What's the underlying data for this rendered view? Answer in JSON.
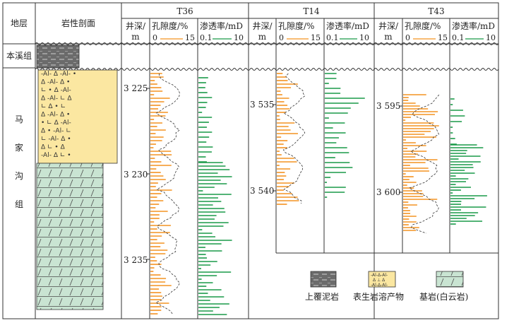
{
  "header": {
    "strata_label": "地层",
    "lithology_label": "岩性剖面"
  },
  "strata": {
    "upper": "本溪组",
    "lower_chars": [
      "马",
      "家",
      "沟",
      "组"
    ]
  },
  "wells": [
    {
      "name": "T36",
      "depth_label": [
        "井深/",
        "m"
      ],
      "porosity_label": "孔隙度/%",
      "porosity_scale": [
        "0",
        "15"
      ],
      "perm_label": "渗透率/mD",
      "perm_scale": [
        "0.1",
        "10"
      ],
      "depth_ticks": [
        "3 225",
        "3 230",
        "3 235"
      ]
    },
    {
      "name": "T14",
      "depth_label": [
        "井深/",
        "m"
      ],
      "porosity_label": "孔隙度/%",
      "porosity_scale": [
        "0",
        "15"
      ],
      "perm_label": "渗透率/mD",
      "perm_scale": [
        "0.1",
        "10"
      ],
      "depth_ticks": [
        "3 535",
        "3 540"
      ]
    },
    {
      "name": "T43",
      "depth_label": [
        "井深/",
        "m"
      ],
      "porosity_label": "孔隙度/%",
      "porosity_scale": [
        "0",
        "15"
      ],
      "perm_label": "渗透率/mD",
      "perm_scale": [
        "0.1",
        "10"
      ],
      "depth_ticks": [
        "3 595",
        "3 600"
      ]
    }
  ],
  "legend": {
    "overlying_mudstone": "上覆泥岩",
    "epigenetic_karst": "表生岩溶产物",
    "bedrock": "基岩(白云岩)"
  },
  "colors": {
    "porosity": "#f39322",
    "permeability": "#1a9a49",
    "mudstone": "#6b6b6b",
    "karst": "#fbe7a1",
    "dolomite": "#c9e4d2"
  }
}
